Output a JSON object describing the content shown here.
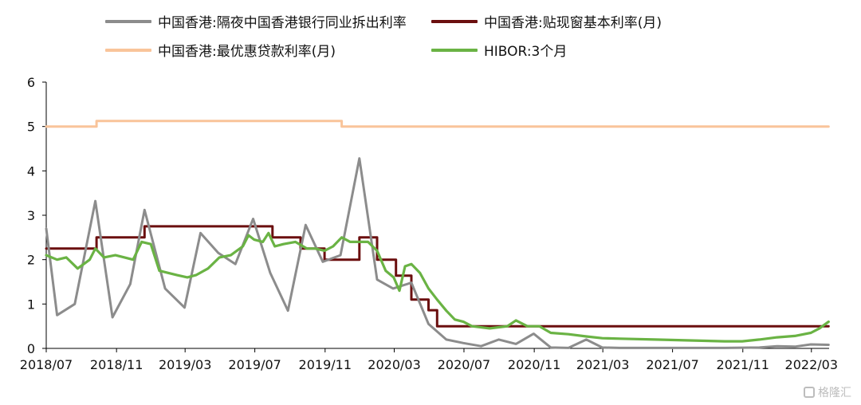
{
  "chart_data": {
    "type": "line",
    "title": "",
    "xlabel": "",
    "ylabel": "",
    "ylim": [
      0,
      6
    ],
    "xlim": [
      "2018-07",
      "2022-04"
    ],
    "y_ticks": [
      0,
      1,
      2,
      3,
      4,
      5,
      6
    ],
    "x_ticks": [
      "2018/07",
      "2018/11",
      "2019/03",
      "2019/07",
      "2019/11",
      "2020/03",
      "2020/07",
      "2020/11",
      "2021/03",
      "2021/07",
      "2021/11",
      "2022/03"
    ],
    "grid": false,
    "legend_position": "top",
    "series": [
      {
        "name": "中国香港:隔夜中国香港银行同业拆出利率",
        "color": "#8c8c8c",
        "style": "line",
        "points": [
          [
            "2018-07-01",
            2.7
          ],
          [
            "2018-07-20",
            0.75
          ],
          [
            "2018-08-20",
            1.0
          ],
          [
            "2018-09-25",
            3.32
          ],
          [
            "2018-10-25",
            0.7
          ],
          [
            "2018-11-25",
            1.45
          ],
          [
            "2018-12-20",
            3.12
          ],
          [
            "2019-01-25",
            1.35
          ],
          [
            "2019-02-28",
            0.92
          ],
          [
            "2019-03-28",
            2.6
          ],
          [
            "2019-04-28",
            2.15
          ],
          [
            "2019-05-28",
            1.9
          ],
          [
            "2019-06-28",
            2.92
          ],
          [
            "2019-07-28",
            1.7
          ],
          [
            "2019-08-28",
            0.85
          ],
          [
            "2019-09-28",
            2.78
          ],
          [
            "2019-10-28",
            1.95
          ],
          [
            "2019-11-28",
            2.1
          ],
          [
            "2019-12-31",
            4.28
          ],
          [
            "2020-01-31",
            1.55
          ],
          [
            "2020-02-28",
            1.35
          ],
          [
            "2020-03-31",
            1.48
          ],
          [
            "2020-04-30",
            0.55
          ],
          [
            "2020-05-31",
            0.2
          ],
          [
            "2020-06-30",
            0.12
          ],
          [
            "2020-07-31",
            0.05
          ],
          [
            "2020-08-31",
            0.2
          ],
          [
            "2020-09-30",
            0.1
          ],
          [
            "2020-10-31",
            0.33
          ],
          [
            "2020-11-30",
            0.02
          ],
          [
            "2020-12-31",
            0.01
          ],
          [
            "2021-01-31",
            0.2
          ],
          [
            "2021-02-28",
            0.02
          ],
          [
            "2021-03-31",
            0.01
          ],
          [
            "2021-06-30",
            0.01
          ],
          [
            "2021-09-30",
            0.01
          ],
          [
            "2021-11-30",
            0.02
          ],
          [
            "2021-12-31",
            0.05
          ],
          [
            "2022-01-31",
            0.04
          ],
          [
            "2022-02-28",
            0.09
          ],
          [
            "2022-03-31",
            0.08
          ]
        ]
      },
      {
        "name": "中国香港:贴现窗基本利率(月)",
        "color": "#6b0f0f",
        "style": "step",
        "points": [
          [
            "2018-07-01",
            2.25
          ],
          [
            "2018-09-27",
            2.5
          ],
          [
            "2018-12-20",
            2.75
          ],
          [
            "2019-08-01",
            2.5
          ],
          [
            "2019-09-19",
            2.25
          ],
          [
            "2019-10-31",
            2.0
          ],
          [
            "2019-12-31",
            2.5
          ],
          [
            "2020-01-31",
            2.0
          ],
          [
            "2020-03-04",
            1.64
          ],
          [
            "2020-03-31",
            1.1
          ],
          [
            "2020-04-30",
            0.86
          ],
          [
            "2020-05-15",
            0.5
          ],
          [
            "2022-03-31",
            0.5
          ]
        ]
      },
      {
        "name": "中国香港:最优惠贷款利率(月)",
        "color": "#f9c49a",
        "style": "step",
        "points": [
          [
            "2018-07-01",
            5.0
          ],
          [
            "2018-09-27",
            5.125
          ],
          [
            "2019-11-30",
            5.0
          ],
          [
            "2022-03-31",
            5.0
          ]
        ]
      },
      {
        "name": "HIBOR:3个月",
        "color": "#6ab344",
        "style": "line",
        "points": [
          [
            "2018-07-01",
            2.1
          ],
          [
            "2018-07-20",
            2.0
          ],
          [
            "2018-08-05",
            2.05
          ],
          [
            "2018-08-25",
            1.8
          ],
          [
            "2018-09-15",
            2.0
          ],
          [
            "2018-09-25",
            2.25
          ],
          [
            "2018-10-10",
            2.05
          ],
          [
            "2018-10-30",
            2.1
          ],
          [
            "2018-11-15",
            2.05
          ],
          [
            "2018-11-30",
            2.0
          ],
          [
            "2018-12-15",
            2.4
          ],
          [
            "2018-12-31",
            2.35
          ],
          [
            "2019-01-15",
            1.75
          ],
          [
            "2019-01-31",
            1.7
          ],
          [
            "2019-02-15",
            1.65
          ],
          [
            "2019-03-05",
            1.6
          ],
          [
            "2019-03-20",
            1.65
          ],
          [
            "2019-04-10",
            1.8
          ],
          [
            "2019-04-30",
            2.05
          ],
          [
            "2019-05-20",
            2.1
          ],
          [
            "2019-06-10",
            2.3
          ],
          [
            "2019-06-20",
            2.55
          ],
          [
            "2019-06-30",
            2.45
          ],
          [
            "2019-07-15",
            2.4
          ],
          [
            "2019-07-25",
            2.6
          ],
          [
            "2019-08-05",
            2.3
          ],
          [
            "2019-08-20",
            2.35
          ],
          [
            "2019-09-10",
            2.4
          ],
          [
            "2019-09-30",
            2.25
          ],
          [
            "2019-10-15",
            2.25
          ],
          [
            "2019-10-31",
            2.2
          ],
          [
            "2019-11-15",
            2.3
          ],
          [
            "2019-11-30",
            2.5
          ],
          [
            "2019-12-15",
            2.4
          ],
          [
            "2019-12-31",
            2.4
          ],
          [
            "2020-01-15",
            2.4
          ],
          [
            "2020-01-31",
            2.2
          ],
          [
            "2020-02-15",
            1.75
          ],
          [
            "2020-02-29",
            1.6
          ],
          [
            "2020-03-10",
            1.3
          ],
          [
            "2020-03-20",
            1.85
          ],
          [
            "2020-03-31",
            1.9
          ],
          [
            "2020-04-15",
            1.7
          ],
          [
            "2020-04-30",
            1.35
          ],
          [
            "2020-05-15",
            1.1
          ],
          [
            "2020-05-31",
            0.85
          ],
          [
            "2020-06-15",
            0.65
          ],
          [
            "2020-06-30",
            0.6
          ],
          [
            "2020-07-15",
            0.5
          ],
          [
            "2020-08-15",
            0.45
          ],
          [
            "2020-09-15",
            0.5
          ],
          [
            "2020-09-30",
            0.63
          ],
          [
            "2020-10-20",
            0.5
          ],
          [
            "2020-11-10",
            0.5
          ],
          [
            "2020-11-30",
            0.35
          ],
          [
            "2020-12-31",
            0.32
          ],
          [
            "2021-01-31",
            0.27
          ],
          [
            "2021-02-28",
            0.23
          ],
          [
            "2021-03-31",
            0.22
          ],
          [
            "2021-05-31",
            0.2
          ],
          [
            "2021-07-31",
            0.18
          ],
          [
            "2021-09-30",
            0.16
          ],
          [
            "2021-10-31",
            0.16
          ],
          [
            "2021-11-30",
            0.2
          ],
          [
            "2021-12-31",
            0.25
          ],
          [
            "2022-01-31",
            0.28
          ],
          [
            "2022-02-28",
            0.35
          ],
          [
            "2022-03-15",
            0.45
          ],
          [
            "2022-03-31",
            0.6
          ]
        ]
      }
    ]
  },
  "legend": [
    {
      "label": "中国香港:隔夜中国香港银行同业拆出利率",
      "color": "#8c8c8c"
    },
    {
      "label": "中国香港:贴现窗基本利率(月)",
      "color": "#6b0f0f"
    },
    {
      "label": "中国香港:最优惠贷款利率(月)",
      "color": "#f9c49a"
    },
    {
      "label": "HIBOR:3个月",
      "color": "#6ab344"
    }
  ],
  "watermark": "格隆汇"
}
